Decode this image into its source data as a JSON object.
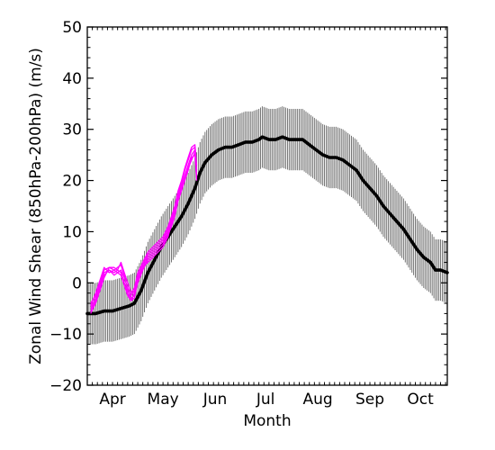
{
  "chart_data": {
    "type": "line",
    "title": "",
    "xlabel": "Month",
    "ylabel": "Zonal Wind Shear (850hPa-200hPa) (m/s)",
    "ylim": [
      -20,
      50
    ],
    "yticks": [
      -20,
      -10,
      0,
      10,
      20,
      30,
      40,
      50
    ],
    "ytick_labels": [
      "−20",
      "−10",
      "0",
      "10",
      "20",
      "30",
      "40",
      "50"
    ],
    "xrange_days": [
      0,
      214
    ],
    "month_ticks": [
      {
        "label": "Apr",
        "day": 15
      },
      {
        "label": "May",
        "day": 45
      },
      {
        "label": "Jun",
        "day": 76
      },
      {
        "label": "Jul",
        "day": 106
      },
      {
        "label": "Aug",
        "day": 137
      },
      {
        "label": "Sep",
        "day": 168
      },
      {
        "label": "Oct",
        "day": 198
      }
    ],
    "grid": false,
    "series": [
      {
        "style": "climatology-mean",
        "color": "#000000",
        "errorbar_color": "#666666",
        "errorbar_halfwidth": 6,
        "points": [
          [
            0,
            -6
          ],
          [
            5,
            -6
          ],
          [
            10,
            -5.5
          ],
          [
            15,
            -5.5
          ],
          [
            20,
            -5
          ],
          [
            25,
            -4.5
          ],
          [
            28,
            -4
          ],
          [
            32,
            -1.5
          ],
          [
            36,
            2
          ],
          [
            40,
            4.5
          ],
          [
            44,
            7
          ],
          [
            48,
            9
          ],
          [
            52,
            11
          ],
          [
            56,
            13
          ],
          [
            60,
            15.5
          ],
          [
            64,
            18.5
          ],
          [
            67,
            21.5
          ],
          [
            70,
            23.5
          ],
          [
            74,
            25
          ],
          [
            78,
            26
          ],
          [
            82,
            26.5
          ],
          [
            86,
            26.5
          ],
          [
            90,
            27
          ],
          [
            94,
            27.5
          ],
          [
            98,
            27.5
          ],
          [
            102,
            28
          ],
          [
            104,
            28.5
          ],
          [
            108,
            28
          ],
          [
            112,
            28
          ],
          [
            116,
            28.5
          ],
          [
            120,
            28
          ],
          [
            125,
            28
          ],
          [
            128,
            28
          ],
          [
            132,
            27
          ],
          [
            136,
            26
          ],
          [
            140,
            25
          ],
          [
            144,
            24.5
          ],
          [
            148,
            24.5
          ],
          [
            152,
            24
          ],
          [
            156,
            23
          ],
          [
            160,
            22
          ],
          [
            164,
            20
          ],
          [
            168,
            18.5
          ],
          [
            172,
            17
          ],
          [
            176,
            15
          ],
          [
            180,
            13.5
          ],
          [
            184,
            12
          ],
          [
            188,
            10.5
          ],
          [
            192,
            8.5
          ],
          [
            196,
            6.5
          ],
          [
            200,
            5
          ],
          [
            204,
            4
          ],
          [
            207,
            2.5
          ],
          [
            210,
            2.5
          ],
          [
            214,
            2
          ]
        ]
      },
      {
        "style": "forecast-ensemble",
        "color": "#ff00ff",
        "members": [
          [
            [
              2,
              -5
            ],
            [
              5,
              -3
            ],
            [
              8,
              0
            ],
            [
              10,
              2
            ],
            [
              13,
              2.5
            ],
            [
              16,
              2
            ],
            [
              18,
              2.5
            ],
            [
              20,
              2
            ],
            [
              22,
              0
            ],
            [
              24,
              -2
            ],
            [
              26,
              -3.5
            ],
            [
              28,
              -2
            ],
            [
              30,
              1
            ],
            [
              33,
              3
            ],
            [
              36,
              5
            ],
            [
              39,
              6
            ],
            [
              42,
              7
            ],
            [
              45,
              8
            ],
            [
              48,
              10
            ],
            [
              50,
              12
            ],
            [
              52,
              14
            ],
            [
              54,
              17
            ],
            [
              56,
              19
            ],
            [
              58,
              21
            ],
            [
              60,
              23
            ],
            [
              62,
              25
            ],
            [
              64,
              26
            ],
            [
              65,
              20
            ]
          ],
          [
            [
              2,
              -6
            ],
            [
              5,
              -4
            ],
            [
              8,
              -1
            ],
            [
              10,
              1
            ],
            [
              13,
              3
            ],
            [
              16,
              2.5
            ],
            [
              18,
              2
            ],
            [
              20,
              2.5
            ],
            [
              22,
              1
            ],
            [
              24,
              -1
            ],
            [
              26,
              -3
            ],
            [
              28,
              -2.5
            ],
            [
              30,
              0
            ],
            [
              33,
              2.5
            ],
            [
              36,
              4.5
            ],
            [
              39,
              5.5
            ],
            [
              42,
              6.5
            ],
            [
              45,
              7.5
            ],
            [
              48,
              9.5
            ],
            [
              50,
              11
            ],
            [
              52,
              13
            ],
            [
              54,
              16
            ],
            [
              56,
              18
            ],
            [
              58,
              20
            ],
            [
              60,
              22
            ],
            [
              62,
              24.5
            ],
            [
              64,
              25
            ],
            [
              65,
              21
            ]
          ],
          [
            [
              2,
              -4.5
            ],
            [
              5,
              -2
            ],
            [
              8,
              1
            ],
            [
              10,
              3
            ],
            [
              13,
              2
            ],
            [
              16,
              2.5
            ],
            [
              18,
              3
            ],
            [
              20,
              3.5
            ],
            [
              22,
              1.5
            ],
            [
              24,
              -1.5
            ],
            [
              26,
              -2.5
            ],
            [
              28,
              -1.5
            ],
            [
              30,
              1.5
            ],
            [
              33,
              3.5
            ],
            [
              36,
              5.5
            ],
            [
              39,
              6.5
            ],
            [
              42,
              7.5
            ],
            [
              45,
              8.5
            ],
            [
              48,
              10.5
            ],
            [
              50,
              12.5
            ],
            [
              52,
              14.5
            ],
            [
              54,
              17.5
            ],
            [
              56,
              19.5
            ],
            [
              58,
              22
            ],
            [
              60,
              24
            ],
            [
              62,
              26
            ],
            [
              64,
              26.5
            ],
            [
              65,
              22
            ]
          ],
          [
            [
              2,
              -5.5
            ],
            [
              5,
              -3.5
            ],
            [
              8,
              -0.5
            ],
            [
              10,
              1.5
            ],
            [
              13,
              2.5
            ],
            [
              16,
              1.5
            ],
            [
              18,
              2
            ],
            [
              20,
              1.5
            ],
            [
              22,
              -0.5
            ],
            [
              24,
              -2.5
            ],
            [
              26,
              -3.5
            ],
            [
              28,
              -3
            ],
            [
              30,
              0.5
            ],
            [
              33,
              3
            ],
            [
              36,
              4
            ],
            [
              39,
              5
            ],
            [
              42,
              6
            ],
            [
              45,
              7
            ],
            [
              48,
              9
            ],
            [
              50,
              11.5
            ],
            [
              52,
              13.5
            ],
            [
              54,
              16.5
            ],
            [
              56,
              18.5
            ],
            [
              58,
              20.5
            ],
            [
              60,
              22.5
            ],
            [
              62,
              24
            ],
            [
              64,
              25.5
            ],
            [
              65,
              20.5
            ]
          ],
          [
            [
              2,
              -4
            ],
            [
              5,
              -2.5
            ],
            [
              8,
              0.5
            ],
            [
              10,
              2.5
            ],
            [
              13,
              3
            ],
            [
              16,
              3
            ],
            [
              18,
              2.5
            ],
            [
              20,
              4
            ],
            [
              22,
              2
            ],
            [
              24,
              0
            ],
            [
              26,
              -2
            ],
            [
              28,
              -1
            ],
            [
              30,
              2
            ],
            [
              33,
              4
            ],
            [
              36,
              6
            ],
            [
              39,
              7
            ],
            [
              42,
              8
            ],
            [
              45,
              9
            ],
            [
              48,
              11
            ],
            [
              50,
              13
            ],
            [
              52,
              15
            ],
            [
              54,
              18
            ],
            [
              56,
              20
            ],
            [
              58,
              22.5
            ],
            [
              60,
              24.5
            ],
            [
              62,
              26.5
            ],
            [
              64,
              27
            ],
            [
              65,
              23
            ]
          ]
        ]
      }
    ]
  }
}
